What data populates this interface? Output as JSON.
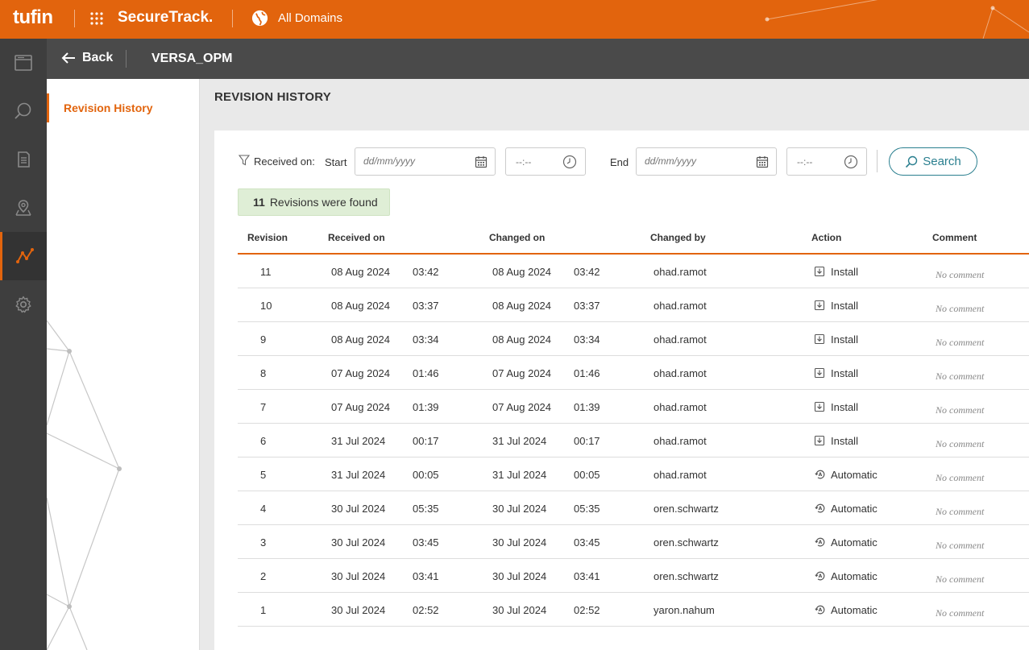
{
  "topbar": {
    "brand": "tufin",
    "app_name": "SecureTrack.",
    "domain": "All Domains"
  },
  "rail": [
    {
      "icon": "browser-window-icon"
    },
    {
      "icon": "search-icon"
    },
    {
      "icon": "document-list-icon"
    },
    {
      "icon": "map-pin-icon"
    },
    {
      "icon": "topology-icon",
      "active": true
    },
    {
      "icon": "gear-icon"
    }
  ],
  "subheader": {
    "back_label": "Back",
    "device_name": "VERSA_OPM"
  },
  "sidenav": {
    "items": [
      {
        "label": "Revision History"
      }
    ]
  },
  "main": {
    "title": "REVISION HISTORY"
  },
  "filter": {
    "label": "Received on:",
    "start_label": "Start",
    "end_label": "End",
    "date_placeholder": "dd/mm/yyyy",
    "time_placeholder": "--:--",
    "search_label": "Search"
  },
  "result": {
    "count": "11",
    "text": "Revisions were found"
  },
  "table": {
    "columns": [
      "Revision",
      "Received on",
      "Changed on",
      "Changed by",
      "Action",
      "Comment"
    ],
    "rows": [
      {
        "rev": "11",
        "rdate": "08 Aug 2024",
        "rtime": "03:42",
        "cdate": "08 Aug 2024",
        "ctime": "03:42",
        "by": "ohad.ramot",
        "action": "Install",
        "comment": "No comment"
      },
      {
        "rev": "10",
        "rdate": "08 Aug 2024",
        "rtime": "03:37",
        "cdate": "08 Aug 2024",
        "ctime": "03:37",
        "by": "ohad.ramot",
        "action": "Install",
        "comment": "No comment"
      },
      {
        "rev": "9",
        "rdate": "08 Aug 2024",
        "rtime": "03:34",
        "cdate": "08 Aug 2024",
        "ctime": "03:34",
        "by": "ohad.ramot",
        "action": "Install",
        "comment": "No comment"
      },
      {
        "rev": "8",
        "rdate": "07 Aug 2024",
        "rtime": "01:46",
        "cdate": "07 Aug 2024",
        "ctime": "01:46",
        "by": "ohad.ramot",
        "action": "Install",
        "comment": "No comment"
      },
      {
        "rev": "7",
        "rdate": "07 Aug 2024",
        "rtime": "01:39",
        "cdate": "07 Aug 2024",
        "ctime": "01:39",
        "by": "ohad.ramot",
        "action": "Install",
        "comment": "No comment"
      },
      {
        "rev": "6",
        "rdate": "31 Jul 2024",
        "rtime": "00:17",
        "cdate": "31 Jul 2024",
        "ctime": "00:17",
        "by": "ohad.ramot",
        "action": "Install",
        "comment": "No comment"
      },
      {
        "rev": "5",
        "rdate": "31 Jul 2024",
        "rtime": "00:05",
        "cdate": "31 Jul 2024",
        "ctime": "00:05",
        "by": "ohad.ramot",
        "action": "Automatic",
        "comment": "No comment"
      },
      {
        "rev": "4",
        "rdate": "30 Jul 2024",
        "rtime": "05:35",
        "cdate": "30 Jul 2024",
        "ctime": "05:35",
        "by": "oren.schwartz",
        "action": "Automatic",
        "comment": "No comment"
      },
      {
        "rev": "3",
        "rdate": "30 Jul 2024",
        "rtime": "03:45",
        "cdate": "30 Jul 2024",
        "ctime": "03:45",
        "by": "oren.schwartz",
        "action": "Automatic",
        "comment": "No comment"
      },
      {
        "rev": "2",
        "rdate": "30 Jul 2024",
        "rtime": "03:41",
        "cdate": "30 Jul 2024",
        "ctime": "03:41",
        "by": "oren.schwartz",
        "action": "Automatic",
        "comment": "No comment"
      },
      {
        "rev": "1",
        "rdate": "30 Jul 2024",
        "rtime": "02:52",
        "cdate": "30 Jul 2024",
        "ctime": "02:52",
        "by": "yaron.nahum",
        "action": "Automatic",
        "comment": "No comment"
      }
    ]
  },
  "colors": {
    "brand": "#e2640d",
    "accent": "#2a7f8f",
    "rail": "#3e3e3e"
  }
}
